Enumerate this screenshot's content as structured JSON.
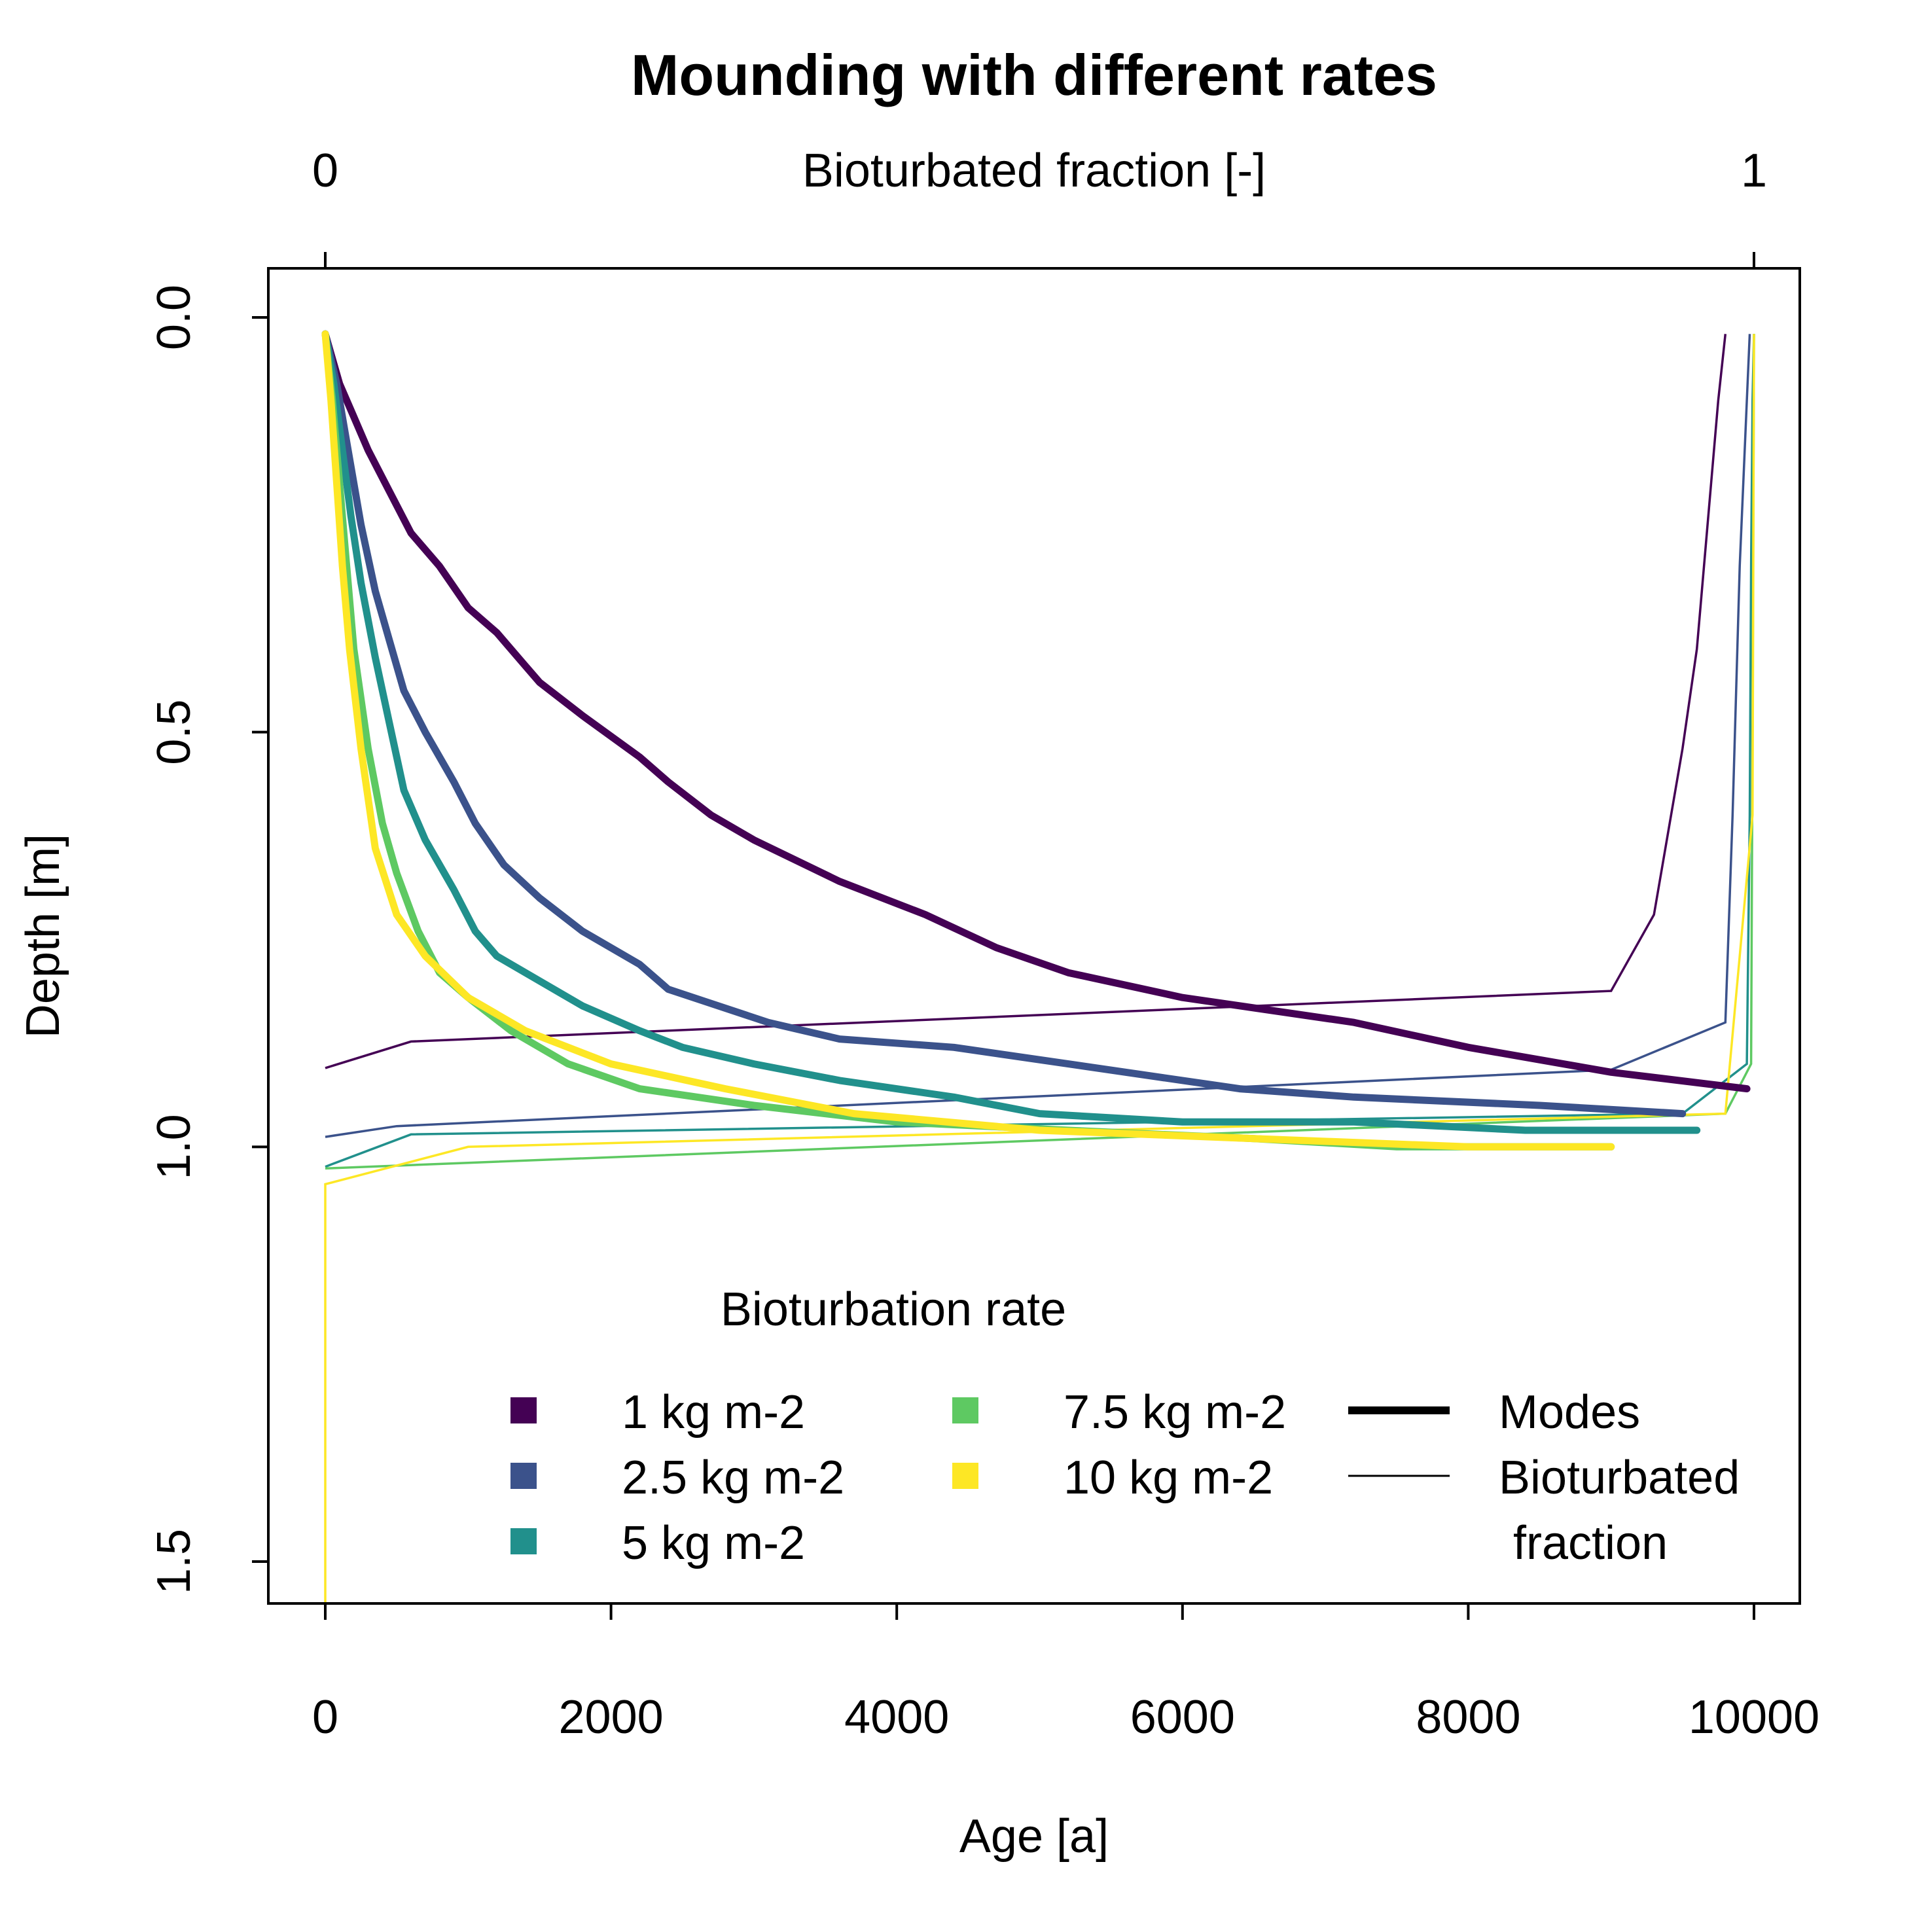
{
  "chart_data": {
    "type": "line",
    "title": "Mounding with different rates",
    "xlabel": "Age [a]",
    "ylabel": "Depth [m]",
    "top_xlabel": "Bioturbated fraction [-]",
    "xlim": [
      0,
      10000
    ],
    "ylim": [
      1.5,
      0.0
    ],
    "y_reversed": true,
    "grid": false,
    "x_ticks": [
      0,
      2000,
      4000,
      6000,
      8000,
      10000
    ],
    "y_ticks": [
      "0.0",
      "0.5",
      "1.0",
      "1.5"
    ],
    "top_ticks": [
      "0",
      "1"
    ],
    "legend": {
      "title": "Bioturbation rate",
      "placement": "bottom-right",
      "type_entries": [
        {
          "label": "Modes",
          "style": "thick"
        },
        {
          "label": "Bioturbated fraction",
          "style": "thin"
        }
      ]
    },
    "series": [
      {
        "name": "1 kg m-2",
        "color": "#440154",
        "modes": [
          [
            0,
            0.02
          ],
          [
            100,
            0.08
          ],
          [
            200,
            0.12
          ],
          [
            300,
            0.16
          ],
          [
            450,
            0.21
          ],
          [
            600,
            0.26
          ],
          [
            800,
            0.3
          ],
          [
            1000,
            0.35
          ],
          [
            1200,
            0.38
          ],
          [
            1400,
            0.42
          ],
          [
            1500,
            0.44
          ],
          [
            1800,
            0.48
          ],
          [
            2200,
            0.53
          ],
          [
            2400,
            0.56
          ],
          [
            2700,
            0.6
          ],
          [
            3000,
            0.63
          ],
          [
            3600,
            0.68
          ],
          [
            4200,
            0.72
          ],
          [
            4700,
            0.76
          ],
          [
            5200,
            0.79
          ],
          [
            6000,
            0.82
          ],
          [
            7200,
            0.85
          ],
          [
            8000,
            0.88
          ],
          [
            9000,
            0.91
          ],
          [
            9950,
            0.93
          ]
        ],
        "bioturbated_fraction": [
          [
            0,
            0.905
          ],
          [
            0.06,
            0.873
          ],
          [
            0.9,
            0.812
          ],
          [
            0.93,
            0.72
          ],
          [
            0.94,
            0.62
          ],
          [
            0.95,
            0.52
          ],
          [
            0.96,
            0.4
          ],
          [
            0.965,
            0.3
          ],
          [
            0.97,
            0.2
          ],
          [
            0.975,
            0.1
          ],
          [
            0.98,
            0.02
          ]
        ]
      },
      {
        "name": "2.5 kg m-2",
        "color": "#3b528b",
        "modes": [
          [
            0,
            0.02
          ],
          [
            80,
            0.08
          ],
          [
            150,
            0.15
          ],
          [
            250,
            0.25
          ],
          [
            350,
            0.33
          ],
          [
            450,
            0.39
          ],
          [
            550,
            0.45
          ],
          [
            700,
            0.5
          ],
          [
            900,
            0.56
          ],
          [
            1050,
            0.61
          ],
          [
            1250,
            0.66
          ],
          [
            1500,
            0.7
          ],
          [
            1800,
            0.74
          ],
          [
            2200,
            0.78
          ],
          [
            2400,
            0.81
          ],
          [
            3100,
            0.85
          ],
          [
            3600,
            0.87
          ],
          [
            4400,
            0.88
          ],
          [
            5200,
            0.9
          ],
          [
            6400,
            0.93
          ],
          [
            7200,
            0.94
          ],
          [
            8500,
            0.95
          ],
          [
            9500,
            0.96
          ]
        ],
        "bioturbated_fraction": [
          [
            0,
            0.988
          ],
          [
            0.05,
            0.975
          ],
          [
            0.9,
            0.907
          ],
          [
            0.98,
            0.85
          ],
          [
            0.985,
            0.6
          ],
          [
            0.99,
            0.3
          ],
          [
            0.995,
            0.1
          ],
          [
            0.997,
            0.02
          ]
        ]
      },
      {
        "name": "5 kg m-2",
        "color": "#21908c",
        "modes": [
          [
            0,
            0.02
          ],
          [
            60,
            0.08
          ],
          [
            120,
            0.16
          ],
          [
            180,
            0.24
          ],
          [
            250,
            0.32
          ],
          [
            350,
            0.41
          ],
          [
            450,
            0.49
          ],
          [
            550,
            0.57
          ],
          [
            700,
            0.63
          ],
          [
            900,
            0.69
          ],
          [
            1050,
            0.74
          ],
          [
            1200,
            0.77
          ],
          [
            1500,
            0.8
          ],
          [
            1800,
            0.83
          ],
          [
            2200,
            0.86
          ],
          [
            2500,
            0.88
          ],
          [
            3000,
            0.9
          ],
          [
            3600,
            0.92
          ],
          [
            4400,
            0.94
          ],
          [
            5000,
            0.96
          ],
          [
            6000,
            0.97
          ],
          [
            7200,
            0.97
          ],
          [
            8400,
            0.98
          ],
          [
            9600,
            0.98
          ]
        ],
        "bioturbated_fraction": [
          [
            0,
            1.024
          ],
          [
            0.06,
            0.985
          ],
          [
            0.95,
            0.96
          ],
          [
            0.995,
            0.9
          ],
          [
            0.997,
            0.6
          ],
          [
            0.998,
            0.3
          ],
          [
            0.999,
            0.1
          ],
          [
            1.0,
            0.02
          ]
        ]
      },
      {
        "name": "7.5 kg m-2",
        "color": "#5ec962",
        "modes": [
          [
            0,
            0.02
          ],
          [
            50,
            0.1
          ],
          [
            100,
            0.2
          ],
          [
            150,
            0.3
          ],
          [
            200,
            0.4
          ],
          [
            300,
            0.52
          ],
          [
            400,
            0.61
          ],
          [
            500,
            0.67
          ],
          [
            650,
            0.74
          ],
          [
            800,
            0.79
          ],
          [
            1000,
            0.82
          ],
          [
            1300,
            0.86
          ],
          [
            1700,
            0.9
          ],
          [
            2200,
            0.93
          ],
          [
            3000,
            0.95
          ],
          [
            4000,
            0.97
          ],
          [
            5200,
            0.98
          ],
          [
            6500,
            0.99
          ],
          [
            7500,
            1.0
          ],
          [
            9000,
            1.0
          ]
        ],
        "bioturbated_fraction": [
          [
            0,
            1.026
          ],
          [
            0.98,
            0.96
          ],
          [
            0.998,
            0.9
          ],
          [
            0.999,
            0.5
          ],
          [
            1.0,
            0.02
          ]
        ]
      },
      {
        "name": "10 kg m-2",
        "color": "#fde725",
        "modes": [
          [
            0,
            0.02
          ],
          [
            40,
            0.1
          ],
          [
            80,
            0.2
          ],
          [
            120,
            0.3
          ],
          [
            170,
            0.4
          ],
          [
            250,
            0.52
          ],
          [
            350,
            0.64
          ],
          [
            500,
            0.72
          ],
          [
            700,
            0.77
          ],
          [
            1000,
            0.82
          ],
          [
            1400,
            0.86
          ],
          [
            2000,
            0.9
          ],
          [
            2800,
            0.93
          ],
          [
            3700,
            0.96
          ],
          [
            5000,
            0.98
          ],
          [
            6500,
            0.99
          ],
          [
            8000,
            1.0
          ],
          [
            9000,
            1.0
          ]
        ],
        "bioturbated_fraction": [
          [
            0,
            1.55
          ],
          [
            0,
            1.045
          ],
          [
            0.1,
            1.0
          ],
          [
            0.98,
            0.96
          ],
          [
            0.999,
            0.6
          ],
          [
            1.0,
            0.02
          ]
        ]
      }
    ]
  }
}
